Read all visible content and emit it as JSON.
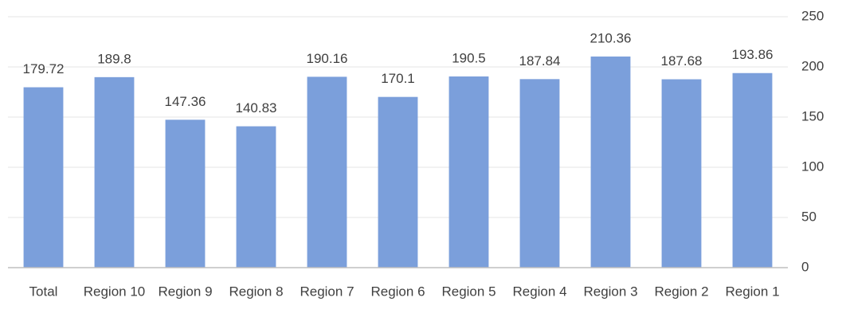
{
  "chart_data": {
    "type": "bar",
    "categories": [
      "Total",
      "Region 10",
      "Region 9",
      "Region 8",
      "Region 7",
      "Region 6",
      "Region 5",
      "Region 4",
      "Region 3",
      "Region 2",
      "Region 1"
    ],
    "values": [
      179.72,
      189.8,
      147.36,
      140.83,
      190.16,
      170.1,
      190.5,
      187.84,
      210.36,
      187.68,
      193.86
    ],
    "color": "#7b9fdb",
    "ylim": [
      0,
      250
    ],
    "yticks": [
      0,
      50,
      100,
      150,
      200,
      250
    ],
    "grid": true
  }
}
